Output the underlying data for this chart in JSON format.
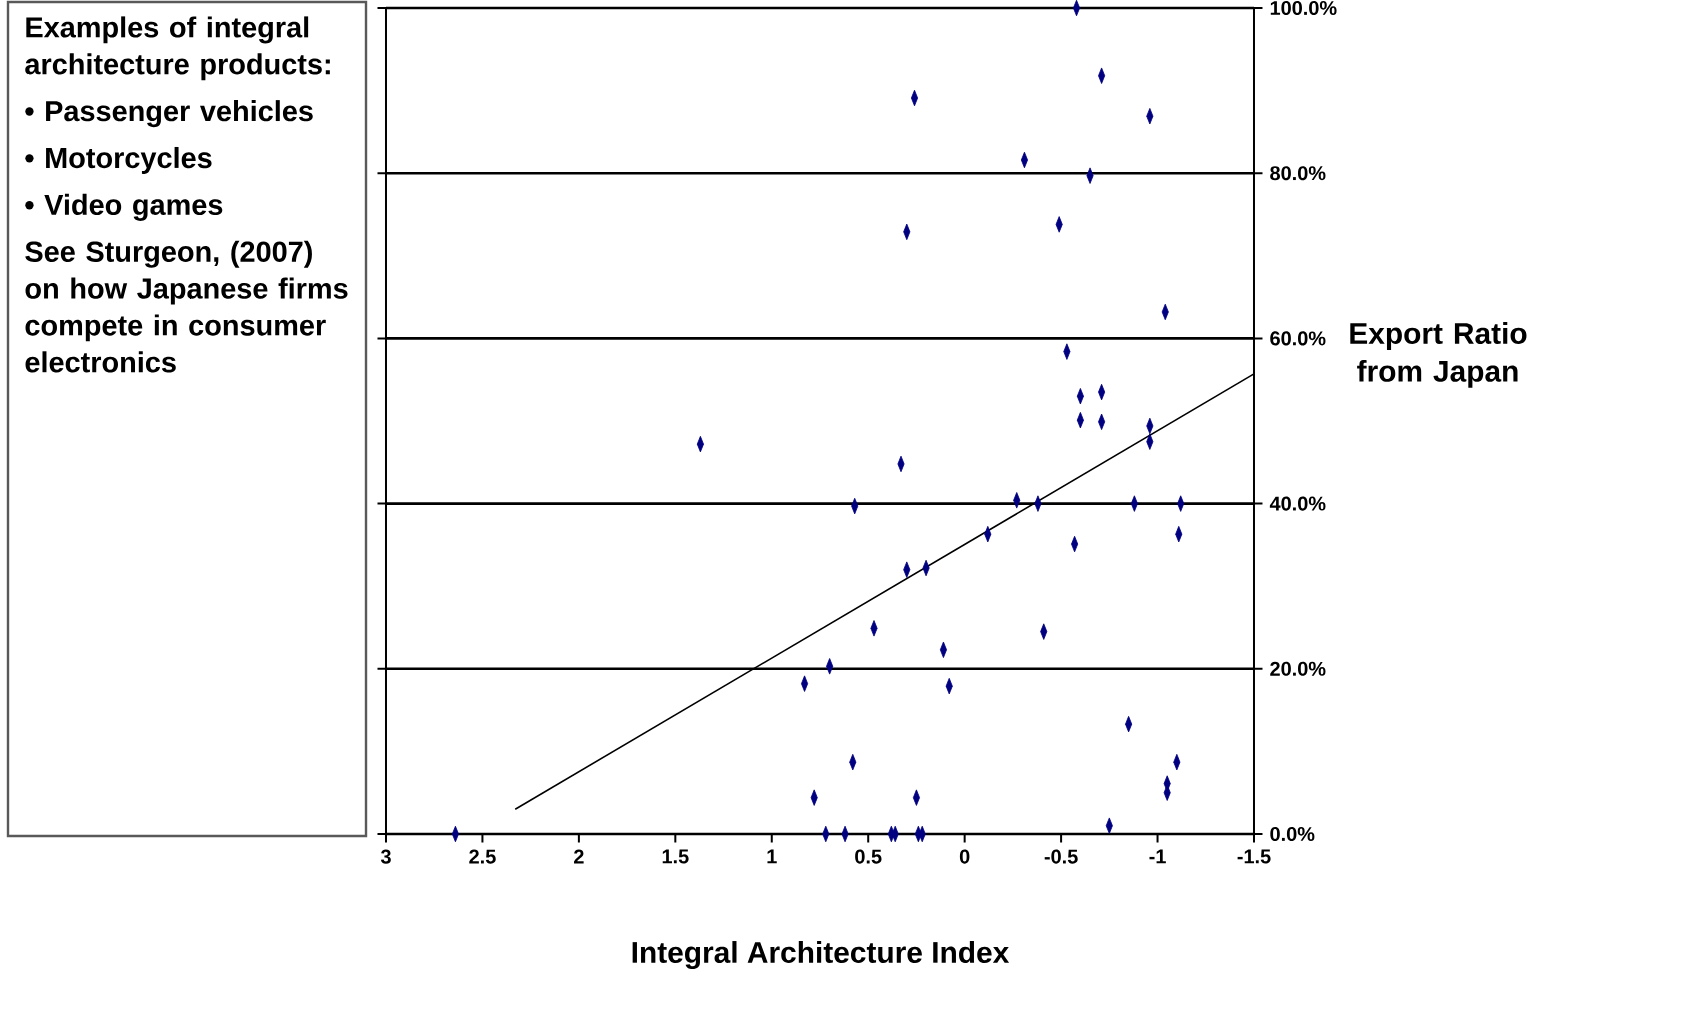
{
  "chart_data": {
    "type": "scatter",
    "xlabel": "Integral Architecture Index",
    "ylabel": "Export Ratio from Japan",
    "annotations": [
      "Examples of integral architecture products:",
      "• Passenger vehicles",
      "• Motorcycles",
      "• Video games",
      "See Sturgeon, (2007) on how Japanese firms compete in consumer electronics"
    ],
    "xlim": [
      3,
      -1.5
    ],
    "xticks": [
      3,
      2.5,
      2,
      1.5,
      1,
      0.5,
      0,
      -0.5,
      -1,
      -1.5
    ],
    "ylim": [
      0,
      100
    ],
    "yticks": [
      {
        "value": 0,
        "label": "0.0%"
      },
      {
        "value": 20,
        "label": "20.0%"
      },
      {
        "value": 40,
        "label": "40.0%"
      },
      {
        "value": 60,
        "label": "60.0%"
      },
      {
        "value": 80,
        "label": "80.0%"
      },
      {
        "value": 100,
        "label": "100.0%"
      }
    ],
    "grid": "y",
    "marker": "diamond",
    "series": [
      {
        "color": "#000080",
        "x": [
          -0.58,
          -0.71,
          0.26,
          -0.96,
          -0.31,
          -0.65,
          0.3,
          -0.49,
          -1.04,
          -0.53,
          -0.6,
          -0.71,
          -0.6,
          -0.71,
          -0.96,
          -0.96,
          1.37,
          0.33,
          0.57,
          -0.27,
          -0.38,
          -0.88,
          -1.12,
          -1.11,
          -0.12,
          -0.57,
          0.3,
          0.2,
          0.47,
          -0.41,
          0.11,
          0.7,
          0.08,
          0.83,
          -0.85,
          0.58,
          -1.1,
          -1.05,
          -1.05,
          0.78,
          0.25,
          -0.75,
          2.64,
          0.72,
          0.62,
          0.38,
          0.36,
          0.24,
          0.22
        ],
        "values": [
          100,
          91.8,
          89.1,
          86.9,
          81.6,
          79.7,
          72.9,
          73.8,
          63.2,
          58.4,
          53,
          53.5,
          50.1,
          49.9,
          49.4,
          47.5,
          47.2,
          44.8,
          39.7,
          40.4,
          40,
          40,
          40,
          36.3,
          36.3,
          35.1,
          32,
          32.2,
          24.9,
          24.5,
          22.3,
          20.3,
          17.9,
          18.2,
          13.3,
          8.7,
          8.7,
          6.1,
          5,
          4.4,
          4.4,
          1,
          0,
          0,
          0,
          0,
          0,
          0,
          0
        ]
      },
      {
        "type": "line",
        "color": "#000000",
        "marker": "none",
        "x": [
          2.33,
          -1.5
        ],
        "values": [
          3,
          55.7
        ]
      }
    ]
  }
}
